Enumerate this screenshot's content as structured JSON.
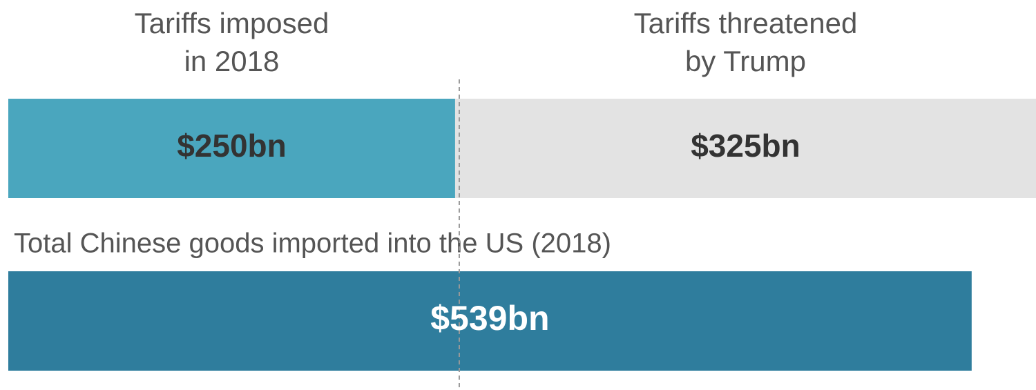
{
  "chart_data": {
    "type": "stacked-bar",
    "xlim": [
      0,
      575
    ],
    "series": [
      {
        "name": [
          "Tariffs imposed",
          "in 2018"
        ],
        "color": "#4aa6be",
        "value": 250,
        "value_label": "$250bn"
      },
      {
        "name": [
          "Tariffs threatened",
          "by Trump"
        ],
        "color": "#e3e3e3",
        "value": 325,
        "value_label": "$325bn"
      }
    ],
    "total": {
      "name": "Total Chinese goods imported into the US (2018)",
      "color": "#2f7d9d",
      "value": 539,
      "value_label": "$539bn"
    }
  }
}
